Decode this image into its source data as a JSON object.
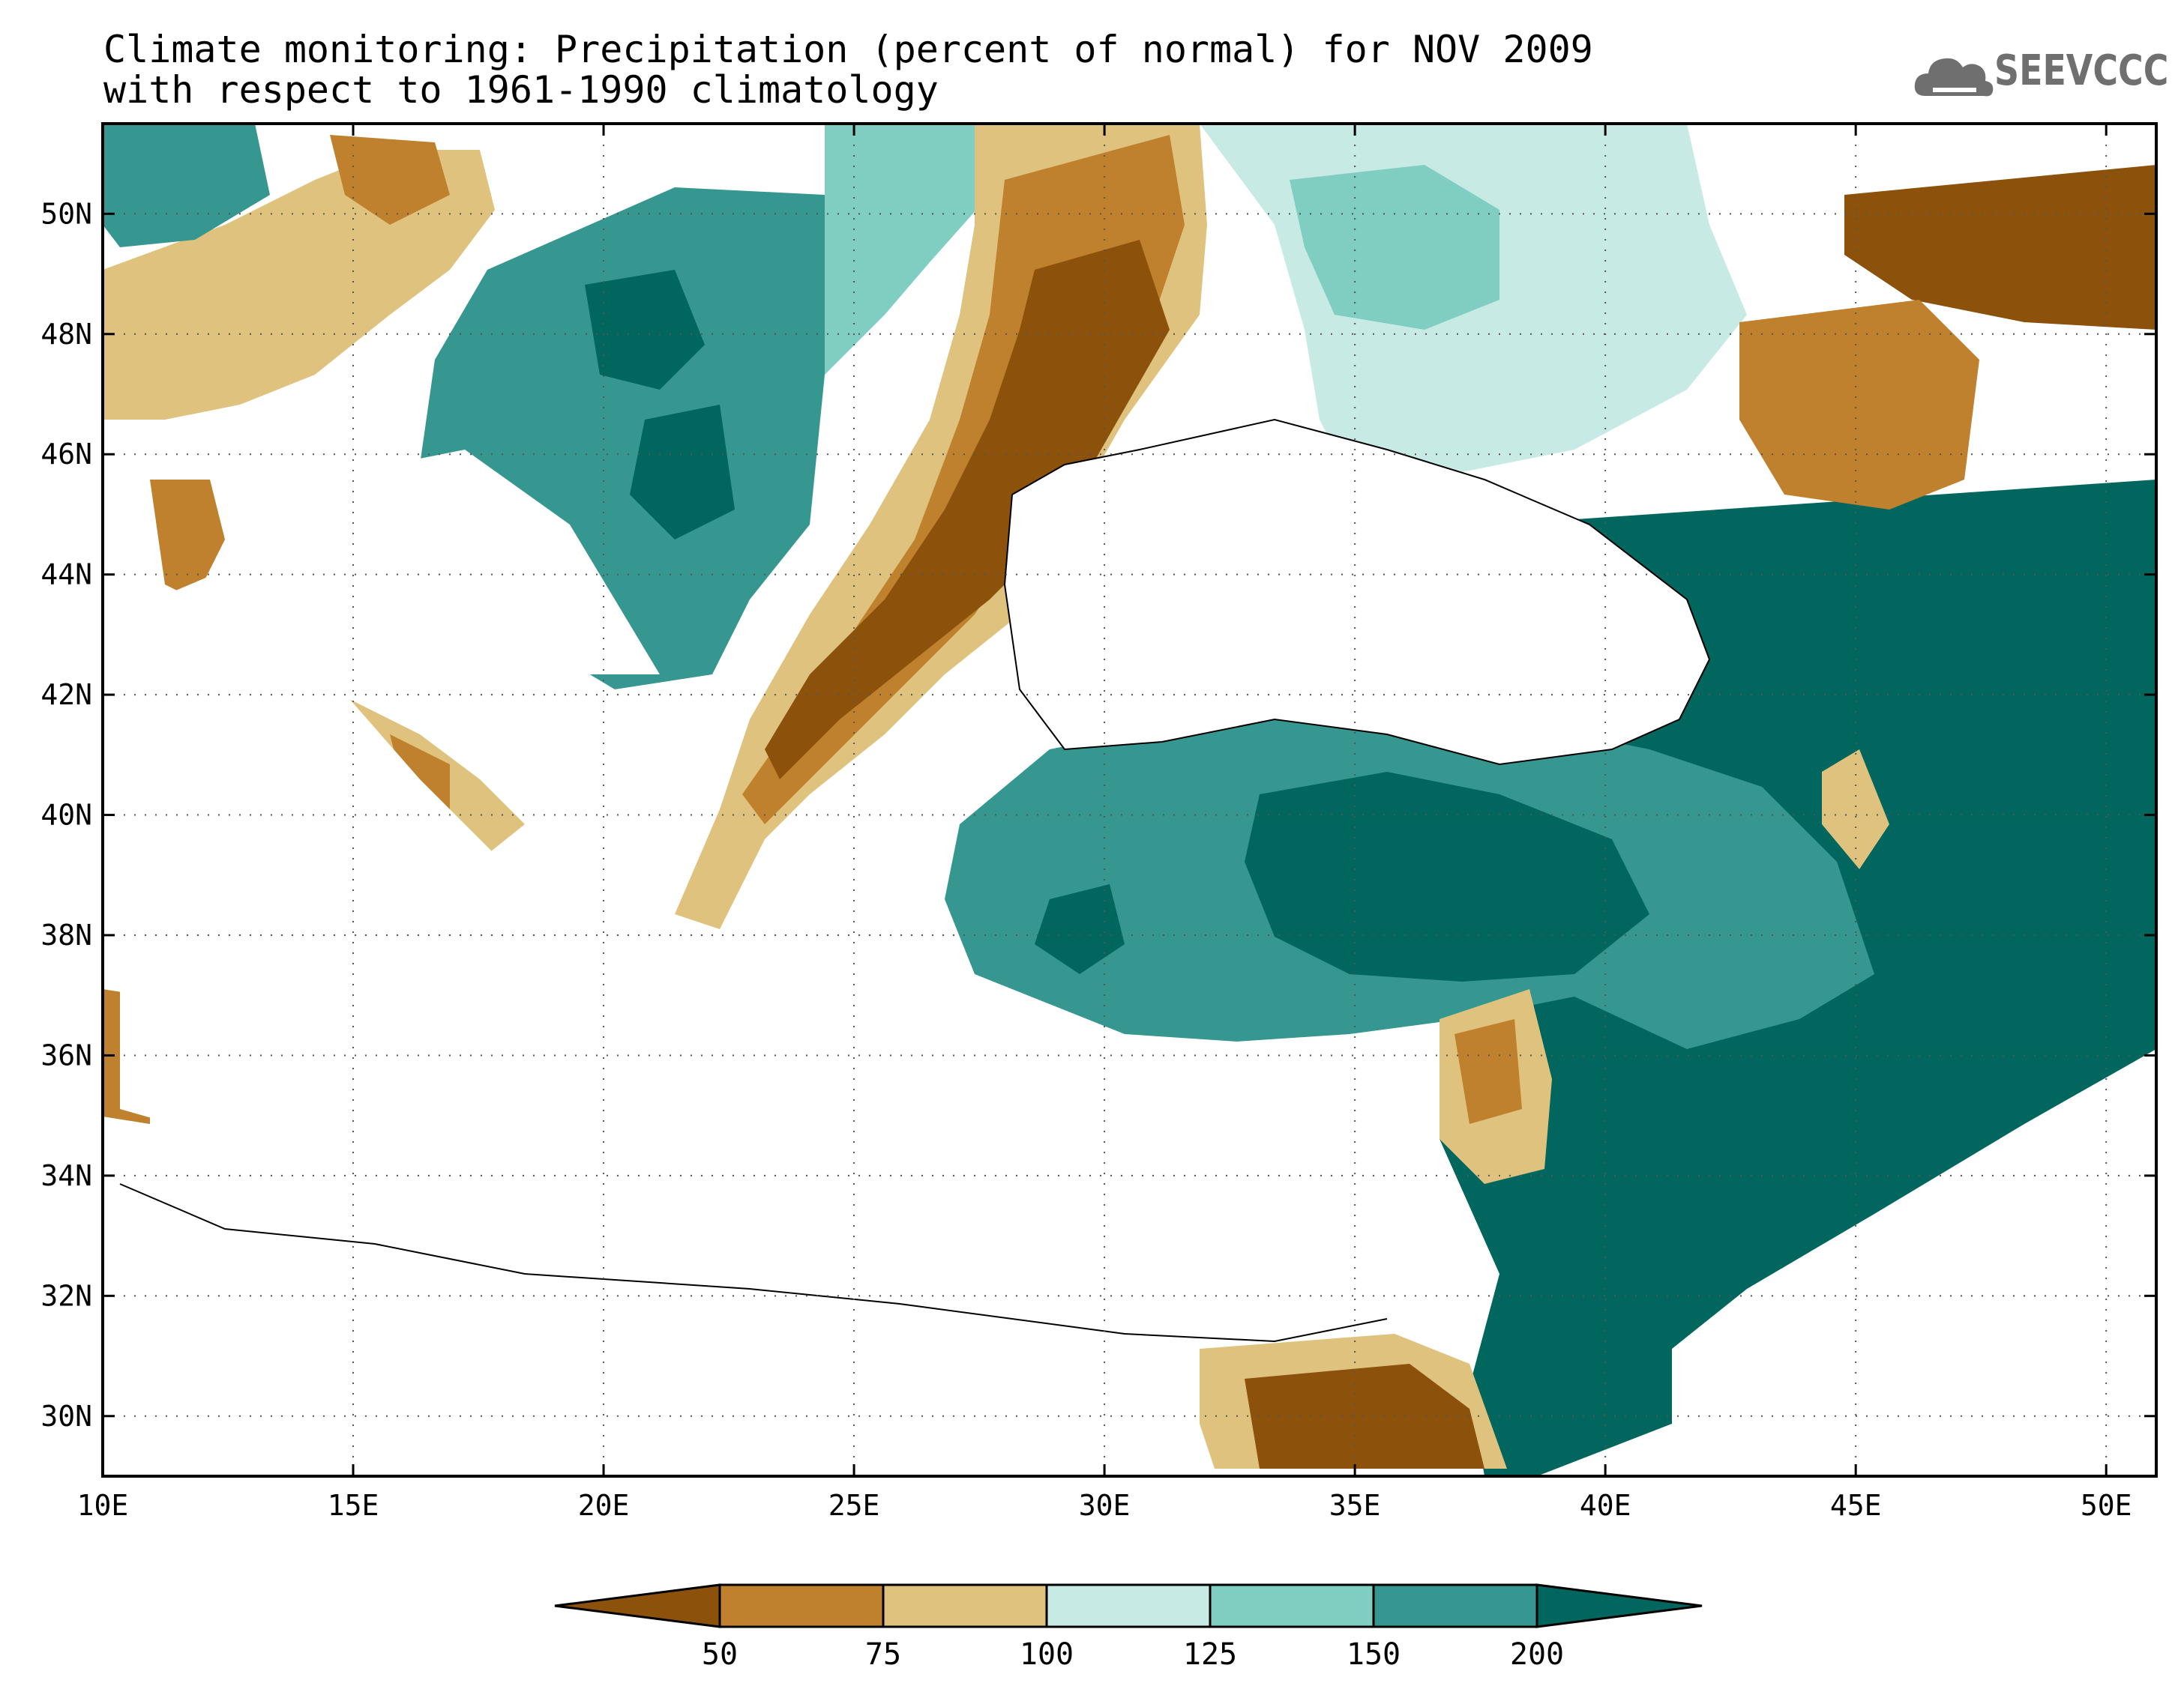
{
  "title": {
    "line1": "Climate monitoring: Precipitation (percent of normal) for NOV 2009",
    "line2": "with respect to 1961-1990 climatology"
  },
  "logo": {
    "text": "SEEVCCC",
    "icon": "cloud-logo-icon",
    "color": "#6f6f6f"
  },
  "map": {
    "lon_range": [
      10,
      51
    ],
    "lat_range": [
      29,
      51.5
    ],
    "lon_ticks": [
      {
        "value": 10,
        "label": "10E"
      },
      {
        "value": 15,
        "label": "15E"
      },
      {
        "value": 20,
        "label": "20E"
      },
      {
        "value": 25,
        "label": "25E"
      },
      {
        "value": 30,
        "label": "30E"
      },
      {
        "value": 35,
        "label": "35E"
      },
      {
        "value": 40,
        "label": "40E"
      },
      {
        "value": 45,
        "label": "45E"
      },
      {
        "value": 50,
        "label": "50E"
      }
    ],
    "lat_ticks": [
      {
        "value": 30,
        "label": "30N"
      },
      {
        "value": 32,
        "label": "32N"
      },
      {
        "value": 34,
        "label": "34N"
      },
      {
        "value": 36,
        "label": "36N"
      },
      {
        "value": 38,
        "label": "38N"
      },
      {
        "value": 40,
        "label": "40N"
      },
      {
        "value": 42,
        "label": "42N"
      },
      {
        "value": 44,
        "label": "44N"
      },
      {
        "value": 46,
        "label": "46N"
      },
      {
        "value": 48,
        "label": "48N"
      },
      {
        "value": 50,
        "label": "50N"
      }
    ],
    "grid": "dotted"
  },
  "colorbar": {
    "boundaries": [
      "50",
      "75",
      "100",
      "125",
      "150",
      "200"
    ],
    "colors": [
      "#8c510a",
      "#bf812d",
      "#dfc27d",
      "#c7eae5",
      "#80cdc1",
      "#35978f",
      "#01665e"
    ],
    "extend": "both"
  }
}
